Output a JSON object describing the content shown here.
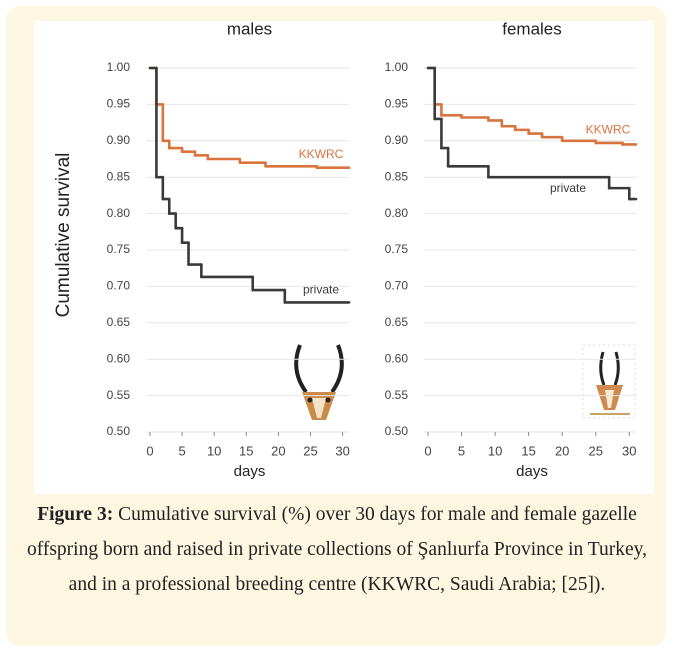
{
  "chart_data": [
    {
      "type": "step",
      "title": "males",
      "ylabel": "Cumulative survival",
      "xlabel": "days",
      "xlim": [
        0,
        31
      ],
      "xticks": [
        0,
        5,
        10,
        15,
        20,
        25,
        30
      ],
      "ylim": [
        0.5,
        1.0
      ],
      "yticks": [
        {
          "value": 0.5,
          "label": "0.50"
        },
        {
          "value": 0.55,
          "label": "0.55"
        },
        {
          "value": 0.6,
          "label": "0.60"
        },
        {
          "value": 0.65,
          "label": "0.65"
        },
        {
          "value": 0.7,
          "label": "0.70"
        },
        {
          "value": 0.75,
          "label": "0.75"
        },
        {
          "value": 0.8,
          "label": "0.80"
        },
        {
          "value": 0.85,
          "label": "0.85"
        },
        {
          "value": 0.9,
          "label": "0.90"
        },
        {
          "value": 0.95,
          "label": "0.95"
        },
        {
          "value": 1.0,
          "label": "1.00"
        }
      ],
      "grid": true,
      "series": [
        {
          "name": "KKWRC",
          "color": "#d9743f",
          "x": [
            0,
            1,
            2,
            3,
            5,
            7,
            9,
            14,
            18,
            26
          ],
          "values": [
            1.0,
            0.95,
            0.9,
            0.89,
            0.885,
            0.88,
            0.875,
            0.87,
            0.865,
            0.863
          ]
        },
        {
          "name": "private",
          "color": "#3a3a3a",
          "x": [
            0,
            1,
            2,
            3,
            4,
            5,
            6,
            8,
            16,
            21
          ],
          "values": [
            1.0,
            0.85,
            0.82,
            0.8,
            0.78,
            0.76,
            0.73,
            0.713,
            0.695,
            0.678
          ]
        }
      ]
    },
    {
      "type": "step",
      "title": "females",
      "xlabel": "days",
      "xlim": [
        0,
        31
      ],
      "xticks": [
        0,
        5,
        10,
        15,
        20,
        25,
        30
      ],
      "ylim": [
        0.5,
        1.0
      ],
      "yticks": [
        {
          "value": 0.5,
          "label": "0.50"
        },
        {
          "value": 0.55,
          "label": "0.55"
        },
        {
          "value": 0.6,
          "label": "0.60"
        },
        {
          "value": 0.65,
          "label": "0.65"
        },
        {
          "value": 0.7,
          "label": "0.70"
        },
        {
          "value": 0.75,
          "label": "0.75"
        },
        {
          "value": 0.8,
          "label": "0.80"
        },
        {
          "value": 0.85,
          "label": "0.85"
        },
        {
          "value": 0.9,
          "label": "0.90"
        },
        {
          "value": 0.95,
          "label": "0.95"
        },
        {
          "value": 1.0,
          "label": "1.00"
        }
      ],
      "grid": true,
      "series": [
        {
          "name": "KKWRC",
          "color": "#d9743f",
          "x": [
            0,
            1,
            2,
            5,
            9,
            11,
            13,
            15,
            17,
            20,
            25,
            29
          ],
          "values": [
            1.0,
            0.95,
            0.935,
            0.932,
            0.928,
            0.92,
            0.915,
            0.91,
            0.905,
            0.9,
            0.897,
            0.895
          ]
        },
        {
          "name": "private",
          "color": "#3a3a3a",
          "x": [
            0,
            1,
            2,
            3,
            9,
            27,
            30
          ],
          "values": [
            1.0,
            0.93,
            0.89,
            0.865,
            0.85,
            0.835,
            0.82
          ]
        }
      ]
    }
  ],
  "caption": {
    "label": "Figure 3:",
    "text": "Cumulative survival (%) over 30 days for male and female gazelle offspring born and raised in private collections of Şanlıurfa Province in Turkey, and in a professional breeding centre (KKWRC, Saudi Arabia; [25])."
  }
}
